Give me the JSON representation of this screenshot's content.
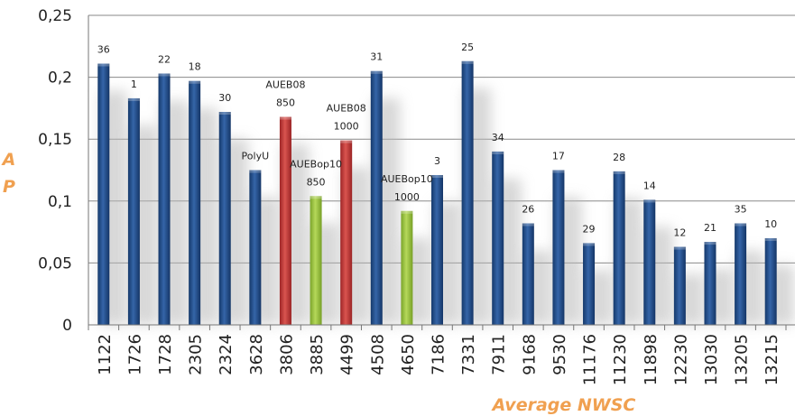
{
  "chart_data": {
    "type": "bar",
    "xlabel": "Average NWSC",
    "ylabel": "A P",
    "ylim": [
      0,
      0.25
    ],
    "yticks": [
      "0",
      "0,05",
      "0,1",
      "0,15",
      "0,2",
      "0,25"
    ],
    "grid": true,
    "categories": [
      "1122",
      "1726",
      "1728",
      "2305",
      "2324",
      "3628",
      "3806",
      "3885",
      "4499",
      "4508",
      "4650",
      "7186",
      "7331",
      "7911",
      "9168",
      "9530",
      "11176",
      "11230",
      "11898",
      "12230",
      "13030",
      "13205",
      "13215"
    ],
    "values": [
      0.211,
      0.183,
      0.203,
      0.197,
      0.172,
      0.125,
      0.168,
      0.104,
      0.149,
      0.205,
      0.092,
      0.121,
      0.213,
      0.14,
      0.082,
      0.125,
      0.066,
      0.124,
      0.101,
      0.063,
      0.067,
      0.082,
      0.07
    ],
    "bar_labels": [
      [
        "36"
      ],
      [
        "1"
      ],
      [
        "22"
      ],
      [
        "18"
      ],
      [
        "30"
      ],
      [
        "PolyU"
      ],
      [
        "AUEB08",
        "850"
      ],
      [
        "AUEBop10",
        "850"
      ],
      [
        "AUEB08",
        "1000"
      ],
      [
        "31"
      ],
      [
        "AUEBop10",
        "1000"
      ],
      [
        "3"
      ],
      [
        "25"
      ],
      [
        "34"
      ],
      [
        "26"
      ],
      [
        "17"
      ],
      [
        "29"
      ],
      [
        "28"
      ],
      [
        "14"
      ],
      [
        "12"
      ],
      [
        "21"
      ],
      [
        "35"
      ],
      [
        "10"
      ]
    ],
    "bar_groups": [
      "other",
      "other",
      "other",
      "other",
      "other",
      "other",
      "aueb08",
      "auebop10",
      "aueb08",
      "other",
      "auebop10",
      "other",
      "other",
      "other",
      "other",
      "other",
      "other",
      "other",
      "other",
      "other",
      "other",
      "other",
      "other"
    ],
    "colors": {
      "other": "#1f4e8c",
      "aueb08": "#c0393b",
      "auebop10": "#9cc43c",
      "axis_title": "#f0a050"
    }
  }
}
